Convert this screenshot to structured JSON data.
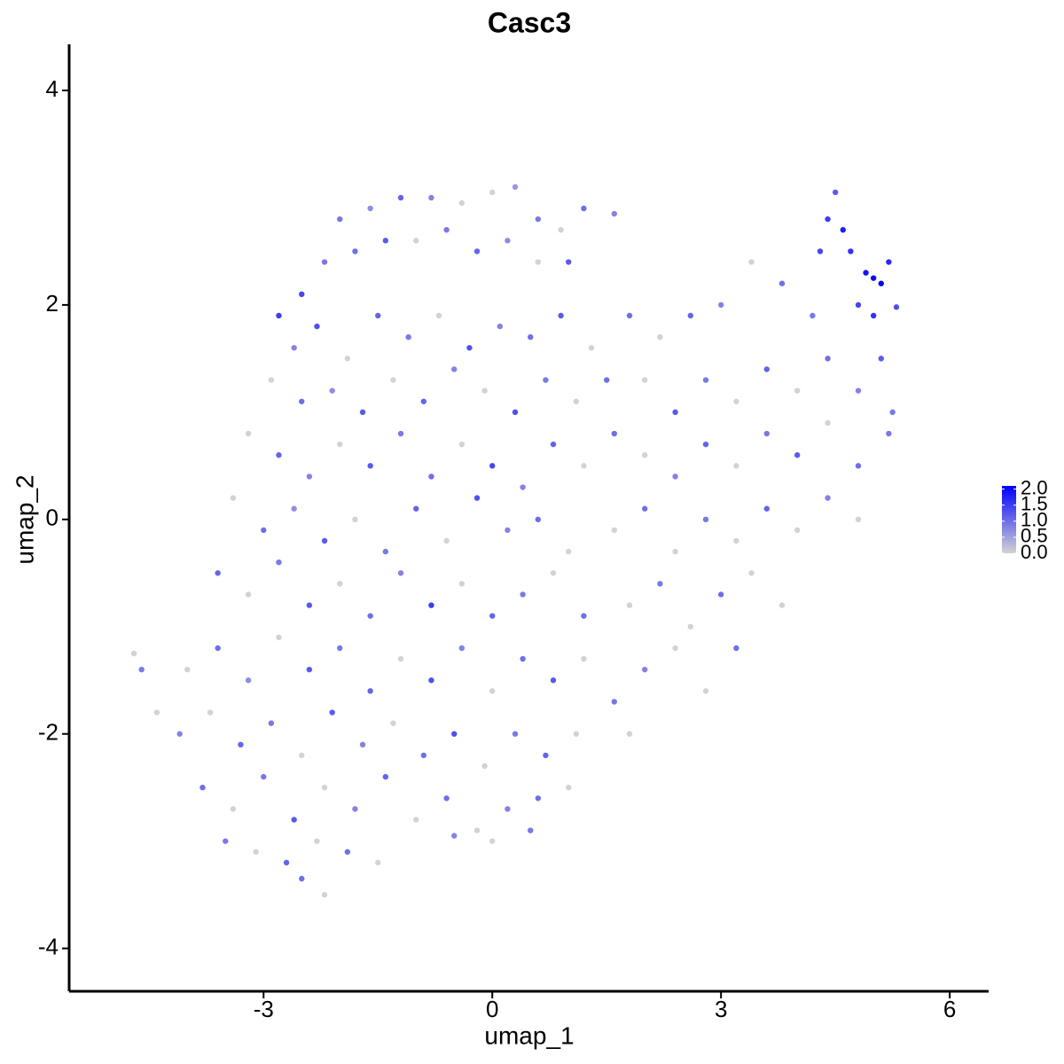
{
  "chart_data": {
    "type": "scatter",
    "title": "Casc3",
    "x_label": "umap_1",
    "y_label": "umap_2",
    "xlim": [
      -5.55,
      6.51
    ],
    "ylim": [
      -4.4,
      4.43
    ],
    "xticks": [
      -3,
      0,
      3,
      6
    ],
    "yticks": [
      -4,
      -2,
      0,
      2,
      4
    ],
    "x": [
      -2.0,
      -1.6,
      -1.2,
      -0.8,
      -0.4,
      0.0,
      0.3,
      0.6,
      0.9,
      1.6,
      1.2,
      -2.5,
      -2.2,
      -1.8,
      -1.4,
      -1.0,
      -0.6,
      -0.2,
      0.2,
      0.6,
      1.0,
      -2.8,
      -2.6,
      -2.3,
      -1.9,
      -1.5,
      -1.1,
      -0.7,
      -0.3,
      0.1,
      0.5,
      0.9,
      1.3,
      -2.9,
      -2.5,
      -2.1,
      -1.7,
      -1.3,
      -0.9,
      -0.5,
      -0.1,
      0.3,
      0.7,
      1.1,
      1.5,
      -3.2,
      -2.8,
      -2.4,
      -2.0,
      -1.6,
      -1.2,
      -0.8,
      -0.4,
      0.0,
      0.4,
      0.8,
      1.2,
      -3.4,
      -3.0,
      -2.6,
      -2.2,
      -1.8,
      -1.4,
      -1.0,
      -0.6,
      -0.2,
      0.2,
      0.6,
      1.0,
      -3.6,
      -3.2,
      -2.8,
      -2.4,
      -2.0,
      -1.6,
      -1.2,
      -0.8,
      -0.4,
      0.0,
      0.4,
      0.8,
      1.2,
      -4.0,
      -3.6,
      -3.2,
      -2.8,
      -2.4,
      -2.0,
      -1.6,
      -1.2,
      -0.8,
      -0.4,
      0.0,
      0.4,
      0.8,
      1.2,
      1.6,
      -4.1,
      -3.7,
      -3.3,
      -2.9,
      -2.5,
      -2.1,
      -1.7,
      -1.3,
      -0.9,
      -0.5,
      -0.1,
      0.3,
      0.7,
      1.1,
      -3.8,
      -3.4,
      -3.0,
      -2.6,
      -2.2,
      -1.8,
      -1.4,
      -1.0,
      -0.6,
      -0.2,
      0.2,
      0.6,
      1.0,
      -3.5,
      -3.1,
      -2.7,
      -2.3,
      -1.9,
      -1.5,
      -0.5,
      0.0,
      0.5,
      -2.2,
      -2.5,
      -4.7,
      -4.6,
      -4.4,
      1.8,
      2.2,
      2.6,
      3.0,
      3.4,
      3.8,
      4.2,
      2.0,
      2.4,
      2.8,
      3.2,
      3.6,
      4.0,
      4.4,
      4.8,
      1.6,
      2.0,
      2.4,
      2.8,
      3.2,
      3.6,
      4.0,
      4.4,
      4.8,
      5.2,
      1.6,
      2.0,
      2.4,
      2.8,
      3.2,
      3.6,
      4.0,
      4.4,
      4.8,
      1.8,
      2.2,
      2.6,
      3.0,
      3.4,
      3.8,
      2.0,
      2.4,
      2.8,
      3.2,
      1.8,
      4.4,
      4.5,
      4.6,
      4.7,
      4.9,
      5.0,
      5.1,
      5.2,
      4.8,
      5.0,
      5.3,
      4.3,
      5.25,
      5.1
    ],
    "y": [
      2.8,
      2.9,
      3.0,
      3.0,
      2.95,
      3.05,
      3.1,
      2.8,
      2.7,
      2.85,
      2.9,
      2.1,
      2.4,
      2.5,
      2.6,
      2.6,
      2.7,
      2.5,
      2.6,
      2.4,
      2.4,
      1.9,
      1.6,
      1.8,
      1.5,
      1.9,
      1.7,
      1.9,
      1.6,
      1.8,
      1.7,
      1.9,
      1.6,
      1.3,
      1.1,
      1.2,
      1.0,
      1.3,
      1.1,
      1.4,
      1.2,
      1.0,
      1.3,
      1.1,
      1.3,
      0.8,
      0.6,
      0.4,
      0.7,
      0.5,
      0.8,
      0.4,
      0.7,
      0.5,
      0.3,
      0.7,
      0.5,
      0.2,
      -0.1,
      0.1,
      -0.2,
      0.0,
      -0.3,
      0.1,
      -0.2,
      0.2,
      -0.1,
      0.0,
      -0.3,
      -0.5,
      -0.7,
      -0.4,
      -0.8,
      -0.6,
      -0.9,
      -0.5,
      -0.8,
      -0.6,
      -0.9,
      -0.7,
      -0.5,
      -0.9,
      -1.4,
      -1.2,
      -1.5,
      -1.1,
      -1.4,
      -1.2,
      -1.6,
      -1.3,
      -1.5,
      -1.2,
      -1.6,
      -1.3,
      -1.5,
      -1.3,
      -1.7,
      -2.0,
      -1.8,
      -2.1,
      -1.9,
      -2.2,
      -1.8,
      -2.1,
      -1.9,
      -2.2,
      -2.0,
      -2.3,
      -2.0,
      -2.2,
      -2.0,
      -2.5,
      -2.7,
      -2.4,
      -2.8,
      -2.5,
      -2.7,
      -2.4,
      -2.8,
      -2.6,
      -2.9,
      -2.7,
      -2.6,
      -2.5,
      -3.0,
      -3.1,
      -3.2,
      -3.0,
      -3.1,
      -3.2,
      -2.95,
      -3.0,
      -2.9,
      -3.5,
      -3.35,
      -1.25,
      -1.4,
      -1.8,
      1.9,
      1.7,
      1.9,
      2.0,
      2.4,
      2.2,
      1.9,
      1.3,
      1.0,
      1.3,
      1.1,
      1.4,
      1.2,
      1.5,
      1.2,
      0.8,
      0.6,
      0.4,
      0.7,
      0.5,
      0.8,
      0.6,
      0.9,
      0.5,
      0.8,
      -0.1,
      0.1,
      -0.3,
      0.0,
      -0.2,
      0.1,
      -0.1,
      0.2,
      0.0,
      -0.8,
      -0.6,
      -1.0,
      -0.7,
      -0.5,
      -0.8,
      -1.4,
      -1.2,
      -1.6,
      -1.2,
      -2.0,
      2.8,
      3.05,
      2.7,
      2.5,
      2.3,
      2.25,
      2.2,
      2.4,
      2.0,
      1.9,
      1.98,
      2.5,
      1.0,
      1.5
    ],
    "values": [
      0.9,
      0.7,
      1.1,
      0.8,
      0,
      0,
      0.6,
      0.9,
      0,
      0.8,
      1.0,
      1.4,
      0.9,
      1.0,
      1.2,
      0,
      0.9,
      1.1,
      0.7,
      0,
      1.2,
      1.5,
      0.8,
      1.3,
      0,
      1.1,
      0.9,
      0,
      1.3,
      0.8,
      1.0,
      1.2,
      0,
      0,
      1.0,
      0.7,
      1.2,
      0,
      1.1,
      0.8,
      0,
      1.3,
      0.9,
      0,
      1.0,
      0,
      1.1,
      0.8,
      0,
      1.2,
      0.9,
      1.0,
      0,
      1.4,
      0.8,
      1.1,
      0,
      0,
      1.0,
      0.7,
      1.2,
      0,
      0.9,
      1.1,
      0,
      1.3,
      0.8,
      1.0,
      0,
      1.1,
      0,
      0.9,
      1.2,
      0,
      1.0,
      0.8,
      1.5,
      0,
      1.1,
      0.9,
      0,
      1.0,
      0,
      1.0,
      0.7,
      0,
      1.2,
      0.9,
      1.1,
      0,
      1.3,
      0.8,
      0,
      1.0,
      1.2,
      0,
      0.9,
      0.8,
      0,
      1.1,
      0.9,
      0,
      1.2,
      0.8,
      0,
      1.0,
      1.3,
      0,
      0.9,
      1.1,
      0,
      1.0,
      0,
      0.9,
      1.2,
      0,
      0.8,
      1.1,
      0,
      1.0,
      0,
      0.8,
      1.0,
      0,
      0.9,
      0,
      1.1,
      0,
      1.0,
      0,
      0.8,
      0,
      0.9,
      0,
      1.0,
      0,
      0.9,
      0,
      1.0,
      0,
      1.1,
      0.8,
      0,
      1.0,
      0.9,
      0,
      1.2,
      0.9,
      0,
      1.1,
      0,
      1.0,
      0.8,
      1.0,
      0,
      0.8,
      1.1,
      0,
      0.9,
      1.2,
      0,
      1.0,
      0.9,
      0,
      1.0,
      0,
      0.9,
      0,
      1.1,
      0,
      0.8,
      0,
      0,
      0.9,
      0,
      1.0,
      0,
      0,
      0.8,
      0,
      0,
      1.0,
      0,
      1.5,
      1.2,
      1.8,
      1.6,
      1.9,
      2.0,
      2.1,
      1.7,
      1.4,
      1.6,
      1.3,
      1.4,
      0.9,
      1.2
    ],
    "colorbar": {
      "lim": [
        0,
        2.1
      ],
      "colors": [
        "#d3d3d3",
        "#0000ff"
      ],
      "ticks": [
        {
          "value": 0,
          "label": "0.0"
        },
        {
          "value": 0.5,
          "label": "0.5"
        },
        {
          "value": 1,
          "label": "1.0"
        },
        {
          "value": 1.5,
          "label": "1.5"
        },
        {
          "value": 2,
          "label": "2.0"
        }
      ]
    }
  }
}
